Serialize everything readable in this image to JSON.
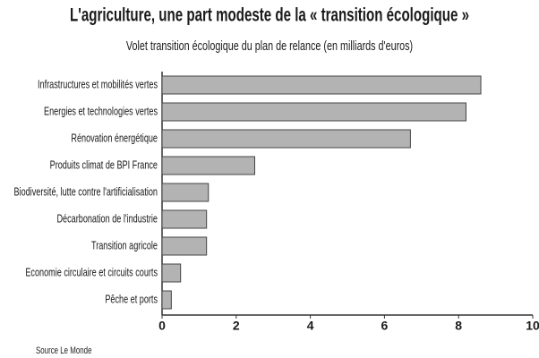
{
  "chart_data": {
    "type": "bar",
    "orientation": "horizontal",
    "title": "L'agriculture, une part modeste de la « transition écologique »",
    "subtitle": "Volet transition écologique du plan de relance (en milliards d'euros)",
    "categories": [
      "Infrastructures et mobilités vertes",
      "Energies et technologies vertes",
      "Rénovation énergétique",
      "Produits climat de BPI France",
      "Biodiversité, lutte contre l'artificialisation",
      "Décarbonation de l'industrie",
      "Transition agricole",
      "Economie circulaire et circuits courts",
      "Pêche et ports"
    ],
    "values": [
      8.6,
      8.2,
      6.7,
      2.5,
      1.25,
      1.2,
      1.2,
      0.5,
      0.25
    ],
    "color": "#b3b3b3",
    "xlim": [
      0,
      10
    ],
    "xticks": [
      0,
      2,
      4,
      6,
      8,
      10
    ],
    "source": "Source Le Monde"
  }
}
